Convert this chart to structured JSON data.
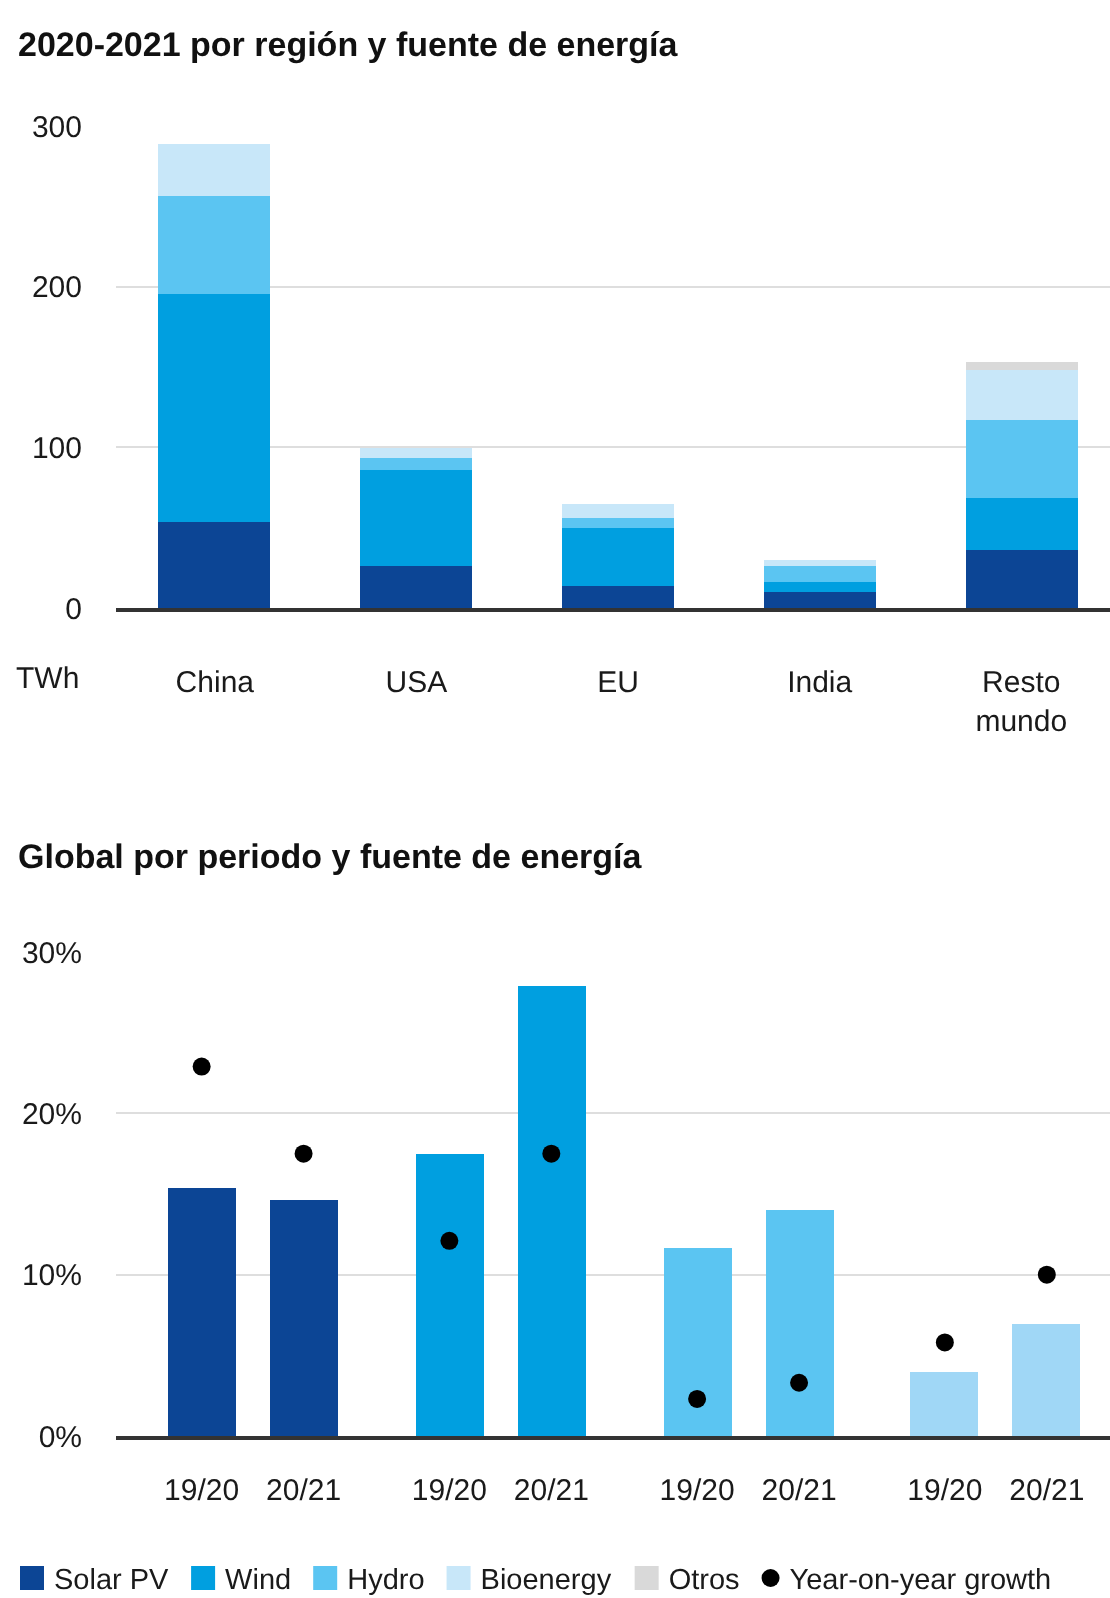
{
  "chart_data": [
    {
      "type": "bar",
      "title": "2020-2021 por región y fuente de energía",
      "ylabel": "TWh",
      "categories": [
        "China",
        "USA",
        "EU",
        "India",
        "Resto mundo"
      ],
      "stacked": true,
      "series": [
        {
          "name": "Solar PV",
          "color": "#0c4595",
          "values": [
            54,
            26,
            14,
            10,
            36
          ]
        },
        {
          "name": "Wind",
          "color": "#009fe0",
          "values": [
            141,
            60,
            36,
            6,
            33
          ]
        },
        {
          "name": "Hydro",
          "color": "#5bc5f2",
          "values": [
            62,
            7,
            6,
            10,
            48
          ]
        },
        {
          "name": "Bioenergy",
          "color": "#c8e7f9",
          "values": [
            32,
            6,
            9,
            4,
            31
          ]
        },
        {
          "name": "Otros",
          "color": "#d9d9d9",
          "values": [
            null,
            null,
            null,
            null,
            5
          ]
        }
      ],
      "ylim": [
        0,
        300
      ],
      "yticks": [
        0,
        100,
        200,
        300
      ],
      "grid": "y",
      "legend": "bottom"
    },
    {
      "type": "bar",
      "title": "Global por periodo y fuente de energía",
      "categories": [
        "19/20",
        "20/21",
        "19/20",
        "20/21",
        "19/20",
        "20/21",
        "19/20",
        "20/21"
      ],
      "series": [
        {
          "color": "#0c4595",
          "values": [
            15.4,
            14.6,
            null,
            null,
            null,
            null,
            null,
            null
          ]
        },
        {
          "color": "#009fe0",
          "values": [
            null,
            null,
            17.5,
            27.9,
            null,
            null,
            null,
            null
          ]
        },
        {
          "color": "#5bc5f2",
          "values": [
            null,
            null,
            null,
            null,
            11.6,
            14.0,
            null,
            null
          ]
        },
        {
          "color": "#a0d7f6",
          "values": [
            null,
            null,
            null,
            null,
            null,
            null,
            4.0,
            7.0
          ]
        },
        {
          "name": "Year-on-year growth",
          "type": "scatter",
          "color": "#000000",
          "values": [
            22.9,
            17.5,
            12.1,
            17.5,
            2.3,
            3.3,
            5.8,
            10
          ]
        }
      ],
      "ylim": [
        0,
        30
      ],
      "yticks": [
        {
          "value": 0,
          "label": "0%"
        },
        {
          "value": 10,
          "label": "10%"
        },
        {
          "value": 20,
          "label": "20%"
        },
        {
          "value": 30,
          "label": "30%"
        }
      ],
      "grid": "y",
      "legend": "bottom",
      "marker": "circle"
    }
  ]
}
